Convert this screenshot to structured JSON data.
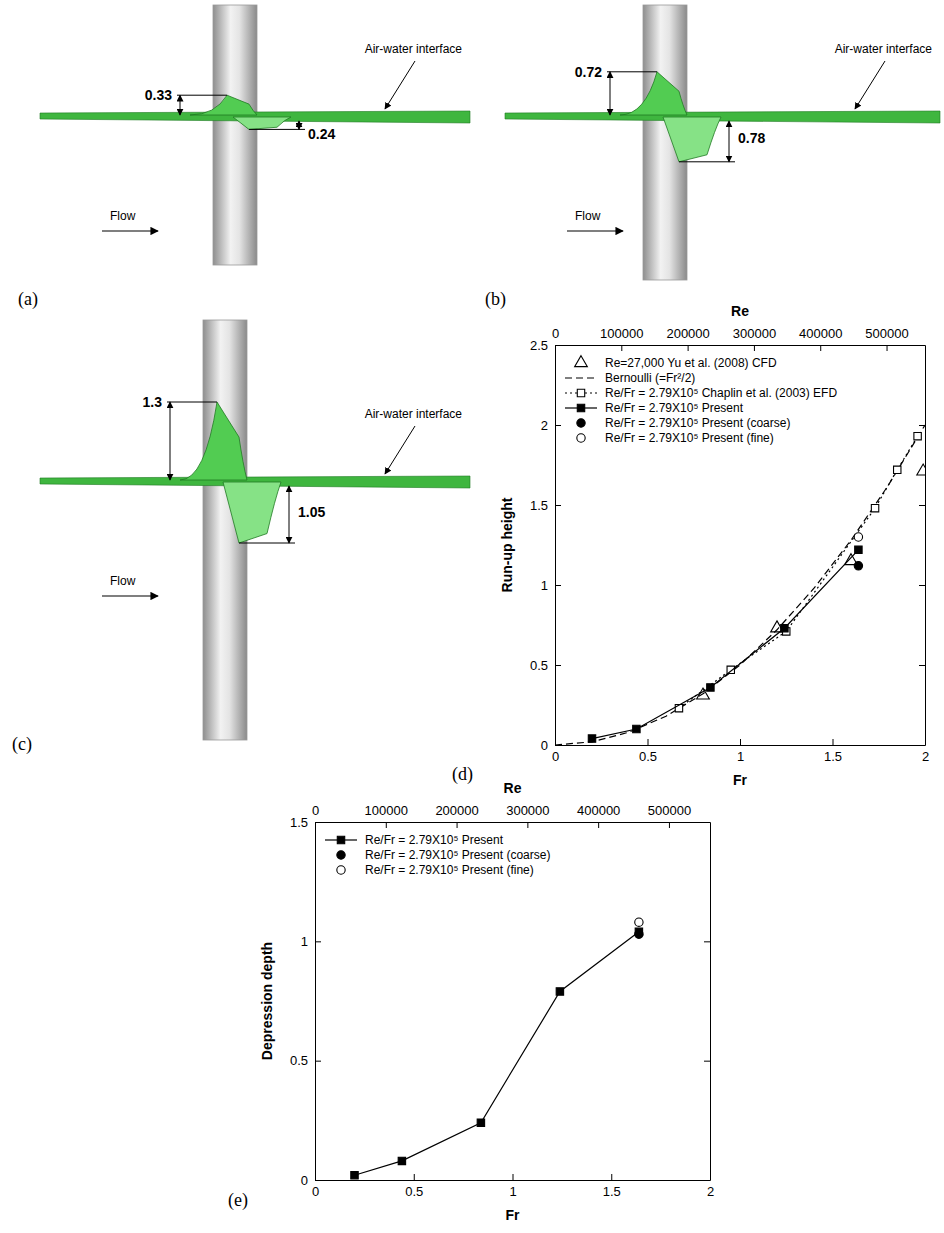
{
  "renderings": [
    {
      "panel_label": "(a)",
      "run_up": 0.33,
      "depression": 0.24,
      "interface_label": "Air-water interface",
      "flow_label": "Flow"
    },
    {
      "panel_label": "(b)",
      "run_up": 0.72,
      "depression": 0.78,
      "interface_label": "Air-water interface",
      "flow_label": "Flow"
    },
    {
      "panel_label": "(c)",
      "run_up": 1.3,
      "depression": 1.05,
      "interface_label": "Air-water interface",
      "flow_label": "Flow"
    }
  ],
  "chart_data": [
    {
      "type": "line",
      "panel_label": "(d)",
      "x_label": "Fr",
      "y_label": "Run-up height",
      "x2_label": "Re",
      "xlim": [
        0,
        2
      ],
      "xticks": [
        0,
        0.5,
        1,
        1.5,
        2
      ],
      "ylim": [
        0,
        2.5
      ],
      "yticks": [
        0,
        0.5,
        1,
        1.5,
        2,
        2.5
      ],
      "x2lim": [
        0,
        558000
      ],
      "x2ticks": [
        0,
        100000,
        200000,
        300000,
        400000,
        500000
      ],
      "legend": "upper left",
      "series": [
        {
          "name": "Re=27,000 Yu et al. (2008) CFD",
          "color": "#000000",
          "marker": "triangle-open",
          "line_style": "none",
          "x": [
            0.8,
            1.2,
            1.6,
            1.99
          ],
          "values": [
            0.31,
            0.73,
            1.15,
            1.71
          ]
        },
        {
          "name": "Bernoulli (=Fr²/2)",
          "color": "#000000",
          "marker": "none",
          "line_style": "dashed",
          "x": [
            0,
            0.2,
            0.4,
            0.6,
            0.8,
            1.0,
            1.2,
            1.4,
            1.6,
            1.8,
            2.0
          ],
          "values": [
            0,
            0.02,
            0.08,
            0.18,
            0.32,
            0.5,
            0.72,
            0.98,
            1.28,
            1.62,
            2.0
          ]
        },
        {
          "name": "Re/Fr = 2.79X10⁵ Chaplin et al. (2003) EFD",
          "color": "#000000",
          "marker": "square-open",
          "line_style": "dotted",
          "x": [
            0.67,
            0.95,
            1.25,
            1.73,
            1.85,
            1.96
          ],
          "values": [
            0.23,
            0.47,
            0.71,
            1.48,
            1.72,
            1.93
          ]
        },
        {
          "name": "Re/Fr = 2.79X10⁵ Present",
          "color": "#000000",
          "marker": "square",
          "line_style": "solid",
          "x": [
            0.2,
            0.44,
            0.84,
            1.24,
            1.64
          ],
          "values": [
            0.04,
            0.1,
            0.36,
            0.73,
            1.22
          ]
        },
        {
          "name": "Re/Fr = 2.79X10⁵ Present (coarse)",
          "color": "#000000",
          "marker": "circle",
          "line_style": "none",
          "x": [
            1.64
          ],
          "values": [
            1.12
          ]
        },
        {
          "name": "Re/Fr = 2.79X10⁵ Present (fine)",
          "color": "#000000",
          "marker": "circle-open",
          "line_style": "none",
          "x": [
            1.64
          ],
          "values": [
            1.3
          ]
        }
      ]
    },
    {
      "type": "line",
      "panel_label": "(e)",
      "x_label": "Fr",
      "y_label": "Depression depth",
      "x2_label": "Re",
      "xlim": [
        0,
        2
      ],
      "xticks": [
        0,
        0.5,
        1,
        1.5,
        2
      ],
      "ylim": [
        0,
        1.5
      ],
      "yticks": [
        0,
        0.5,
        1,
        1.5
      ],
      "x2lim": [
        0,
        558000
      ],
      "x2ticks": [
        0,
        100000,
        200000,
        300000,
        400000,
        500000
      ],
      "legend": "upper left",
      "series": [
        {
          "name": "Re/Fr = 2.79X10⁵ Present",
          "color": "#000000",
          "marker": "square",
          "line_style": "solid",
          "x": [
            0.2,
            0.44,
            0.84,
            1.24,
            1.64
          ],
          "values": [
            0.02,
            0.08,
            0.24,
            0.79,
            1.04
          ]
        },
        {
          "name": "Re/Fr = 2.79X10⁵ Present (coarse)",
          "color": "#000000",
          "marker": "circle",
          "line_style": "none",
          "x": [
            1.64
          ],
          "values": [
            1.03
          ]
        },
        {
          "name": "Re/Fr = 2.79X10⁵ Present (fine)",
          "color": "#000000",
          "marker": "circle-open",
          "line_style": "none",
          "x": [
            1.64
          ],
          "values": [
            1.08
          ]
        }
      ]
    }
  ]
}
